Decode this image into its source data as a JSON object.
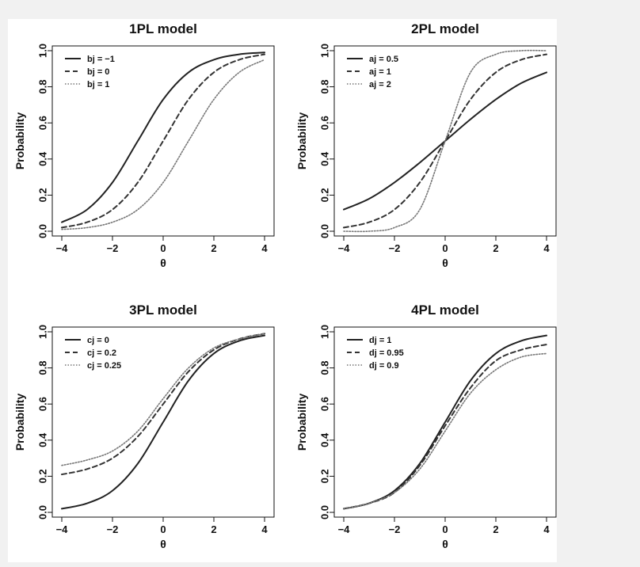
{
  "chart_data": [
    {
      "type": "line",
      "title": "1PL model",
      "xlabel": "θ",
      "ylabel": "Probability",
      "xlim": [
        -4,
        4
      ],
      "ylim": [
        0,
        1
      ],
      "xticks": [
        "−4",
        "−2",
        "0",
        "2",
        "4"
      ],
      "yticks": [
        "0.0",
        "0.2",
        "0.4",
        "0.6",
        "0.8",
        "1.0"
      ],
      "legend_position": "top-left",
      "x": [
        -4,
        -3,
        -2,
        -1,
        0,
        1,
        2,
        3,
        4
      ],
      "series": [
        {
          "name": "bj = −1",
          "style": "solid",
          "values": [
            0.05,
            0.12,
            0.27,
            0.5,
            0.73,
            0.88,
            0.95,
            0.98,
            0.99
          ]
        },
        {
          "name": "bj = 0",
          "style": "dashed",
          "values": [
            0.02,
            0.05,
            0.12,
            0.27,
            0.5,
            0.73,
            0.88,
            0.95,
            0.98
          ]
        },
        {
          "name": "bj = 1",
          "style": "dotted",
          "values": [
            0.01,
            0.02,
            0.05,
            0.12,
            0.27,
            0.5,
            0.73,
            0.88,
            0.95
          ]
        }
      ]
    },
    {
      "type": "line",
      "title": "2PL model",
      "xlabel": "θ",
      "ylabel": "Probability",
      "xlim": [
        -4,
        4
      ],
      "ylim": [
        0,
        1
      ],
      "xticks": [
        "−4",
        "−2",
        "0",
        "2",
        "4"
      ],
      "yticks": [
        "0.0",
        "0.2",
        "0.4",
        "0.6",
        "0.8",
        "1.0"
      ],
      "legend_position": "top-left",
      "x": [
        -4,
        -3,
        -2,
        -1,
        0,
        1,
        2,
        3,
        4
      ],
      "series": [
        {
          "name": "aj = 0.5",
          "style": "solid",
          "values": [
            0.12,
            0.18,
            0.27,
            0.38,
            0.5,
            0.62,
            0.73,
            0.82,
            0.88
          ]
        },
        {
          "name": "aj = 1",
          "style": "dashed",
          "values": [
            0.02,
            0.05,
            0.12,
            0.27,
            0.5,
            0.73,
            0.88,
            0.95,
            0.98
          ]
        },
        {
          "name": "aj = 2",
          "style": "dotted",
          "values": [
            0.0,
            0.0,
            0.02,
            0.12,
            0.5,
            0.88,
            0.98,
            1.0,
            1.0
          ]
        }
      ]
    },
    {
      "type": "line",
      "title": "3PL model",
      "xlabel": "θ",
      "ylabel": "Probability",
      "xlim": [
        -4,
        4
      ],
      "ylim": [
        0,
        1
      ],
      "xticks": [
        "−4",
        "−2",
        "0",
        "2",
        "4"
      ],
      "yticks": [
        "0.0",
        "0.2",
        "0.4",
        "0.6",
        "0.8",
        "1.0"
      ],
      "legend_position": "top-left",
      "x": [
        -4,
        -3,
        -2,
        -1,
        0,
        1,
        2,
        3,
        4
      ],
      "series": [
        {
          "name": "cj = 0",
          "style": "solid",
          "values": [
            0.02,
            0.05,
            0.12,
            0.27,
            0.5,
            0.73,
            0.88,
            0.95,
            0.98
          ]
        },
        {
          "name": "cj = 0.2",
          "style": "dashed",
          "values": [
            0.21,
            0.24,
            0.3,
            0.42,
            0.6,
            0.78,
            0.9,
            0.96,
            0.99
          ]
        },
        {
          "name": "cj = 0.25",
          "style": "dotted",
          "values": [
            0.26,
            0.29,
            0.34,
            0.45,
            0.63,
            0.8,
            0.91,
            0.96,
            0.99
          ]
        }
      ]
    },
    {
      "type": "line",
      "title": "4PL model",
      "xlabel": "θ",
      "ylabel": "Probability",
      "xlim": [
        -4,
        4
      ],
      "ylim": [
        0,
        1
      ],
      "xticks": [
        "−4",
        "−2",
        "0",
        "2",
        "4"
      ],
      "yticks": [
        "0.0",
        "0.2",
        "0.4",
        "0.6",
        "0.8",
        "1.0"
      ],
      "legend_position": "top-left",
      "x": [
        -4,
        -3,
        -2,
        -1,
        0,
        1,
        2,
        3,
        4
      ],
      "series": [
        {
          "name": "dj = 1",
          "style": "solid",
          "values": [
            0.02,
            0.05,
            0.12,
            0.27,
            0.5,
            0.73,
            0.88,
            0.95,
            0.98
          ]
        },
        {
          "name": "dj = 0.95",
          "style": "dashed",
          "values": [
            0.02,
            0.05,
            0.11,
            0.26,
            0.48,
            0.69,
            0.84,
            0.9,
            0.93
          ]
        },
        {
          "name": "dj = 0.9",
          "style": "dotted",
          "values": [
            0.02,
            0.05,
            0.11,
            0.24,
            0.45,
            0.66,
            0.79,
            0.86,
            0.88
          ]
        }
      ]
    }
  ]
}
